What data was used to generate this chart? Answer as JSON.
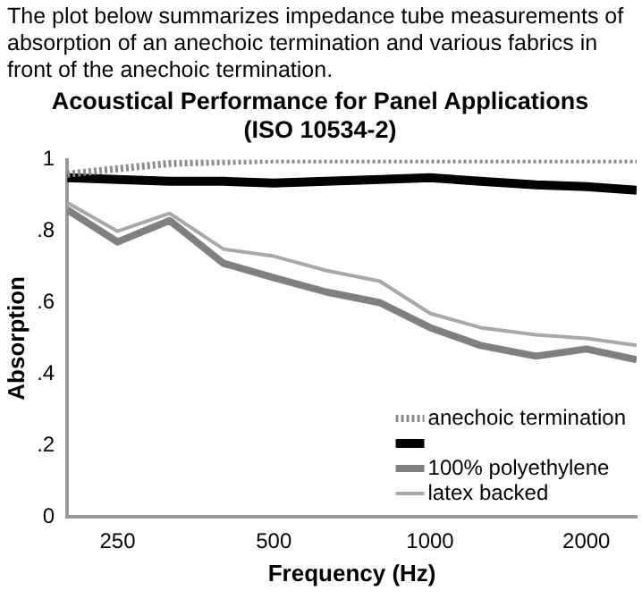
{
  "chart_data": {
    "type": "line",
    "title": "Acoustical Performance for Panel Applications",
    "subtitle": "(ISO 10534-2)",
    "xlabel": "Frequency (Hz)",
    "ylabel": "Absorption",
    "annotations": [
      "The plot below summarizes impedance tube measurements of absorption of an anechoic termination and various fabrics in front of the anechoic termination."
    ],
    "x": [
      200,
      250,
      315,
      400,
      500,
      630,
      800,
      1000,
      1250,
      1600,
      2000,
      2500
    ],
    "series": [
      {
        "name": "anechoic termination",
        "color": "#8c8c8c",
        "line_style": "dotted",
        "values": [
          0.96,
          0.975,
          0.99,
          0.995,
          1.0,
          1.0,
          1.0,
          1.0,
          1.0,
          1.0,
          1.0,
          1.0
        ]
      },
      {
        "color": "#000000",
        "values": [
          0.95,
          0.945,
          0.94,
          0.94,
          0.935,
          0.94,
          0.945,
          0.95,
          0.94,
          0.93,
          0.925,
          0.915
        ]
      },
      {
        "name": "100% polyethylene",
        "color": "#808080",
        "values": [
          0.86,
          0.77,
          0.83,
          0.71,
          0.67,
          0.63,
          0.6,
          0.53,
          0.48,
          0.45,
          0.47,
          0.44
        ]
      },
      {
        "name": "latex backed",
        "color": "#a8a8a8",
        "values": [
          0.88,
          0.8,
          0.85,
          0.75,
          0.73,
          0.69,
          0.66,
          0.57,
          0.53,
          0.51,
          0.5,
          0.48
        ]
      }
    ],
    "log": "x",
    "xlim": [
      200,
      2500
    ],
    "xticks": [
      250,
      500,
      1000,
      2000
    ],
    "ylim": [
      0,
      1.0
    ],
    "yticks": [
      0,
      {
        "value": 0.2,
        "label": ".2"
      },
      {
        "value": 0.4,
        "label": ".4"
      },
      {
        "value": 0.6,
        "label": ".6"
      },
      {
        "value": 0.8,
        "label": ".8"
      },
      1
    ],
    "grid": false,
    "legend": "bottom right",
    "marker": "none",
    "line_style": "solid"
  }
}
